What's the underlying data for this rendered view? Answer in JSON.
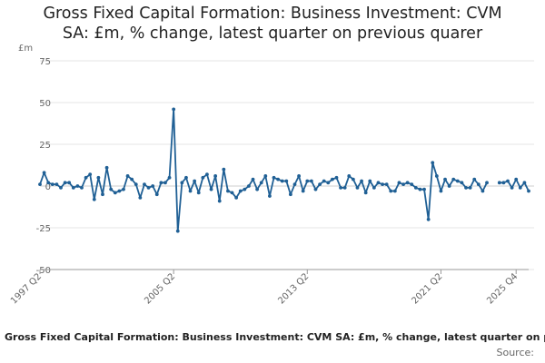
{
  "title_line1": "Gross Fixed Capital Formation: Business Investment: CVM",
  "title_line2": "SA: £m, % change, latest quarter on previous quarer",
  "unit_label": "£m",
  "legend_text": "Gross Fixed Capital Formation: Business Investment: CVM SA: £m, % change, latest quarter on previous quarter",
  "source_label": "Source:",
  "series_color": "#206095",
  "chart_data": {
    "type": "line",
    "title": "Gross Fixed Capital Formation: Business Investment: CVM SA: £m, % change, latest quarter on previous quarer",
    "ylabel": "£m",
    "ylim": [
      -50,
      75
    ],
    "yticks": [
      75,
      50,
      25,
      0,
      -25,
      -50
    ],
    "xtick_labels": [
      "1997 Q2",
      "2005 Q2",
      "2013 Q2",
      "2021 Q2",
      "2025 Q4"
    ],
    "grid": true,
    "start": "1997 Q2",
    "end": "2025 Q4",
    "series": [
      {
        "name": "Gross Fixed Capital Formation: Business Investment: CVM SA: £m, % change, latest quarter on previous quarter",
        "values": [
          1,
          8,
          2,
          1,
          1,
          -1,
          2,
          2,
          -1,
          0,
          -1,
          5,
          7,
          -8,
          5,
          -5,
          11,
          -2,
          -4,
          -3,
          -2,
          6,
          4,
          1,
          -7,
          1,
          -1,
          0,
          -5,
          2,
          2,
          5,
          46,
          -27,
          2,
          5,
          -3,
          3,
          -4,
          5,
          7,
          -2,
          6,
          -9,
          10,
          -3,
          -4,
          -7,
          -3,
          -2,
          0,
          4,
          -2,
          2,
          6,
          -6,
          5,
          4,
          3,
          3,
          -5,
          1,
          6,
          -3,
          3,
          3,
          -2,
          1,
          3,
          2,
          4,
          5,
          -1,
          -1,
          6,
          4,
          -1,
          3,
          -4,
          3,
          -1,
          2,
          1,
          1,
          -3,
          -3,
          2,
          1,
          2,
          1,
          -1,
          -2,
          -2,
          -20,
          14,
          6,
          -3,
          4,
          0,
          4,
          3,
          2,
          -1,
          -1,
          4,
          1,
          -3,
          2,
          null,
          null,
          2,
          2,
          3,
          -1,
          4,
          -1,
          2,
          -3
        ]
      }
    ]
  }
}
